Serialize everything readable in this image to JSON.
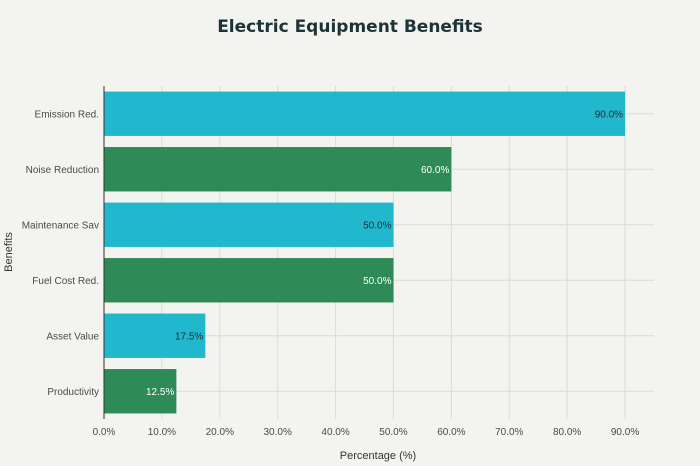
{
  "chart_data": {
    "type": "bar",
    "orientation": "horizontal",
    "title": "Electric Equipment Benefits",
    "xlabel": "Percentage (%)",
    "ylabel": "Benefits",
    "xlim": [
      0,
      95
    ],
    "xticks": [
      0,
      10,
      20,
      30,
      40,
      50,
      60,
      70,
      80,
      90
    ],
    "xtick_labels": [
      "0.0%",
      "10.0%",
      "20.0%",
      "30.0%",
      "40.0%",
      "50.0%",
      "60.0%",
      "70.0%",
      "80.0%",
      "90.0%"
    ],
    "grid": true,
    "categories": [
      "Emission Red.",
      "Noise Reduction",
      "Maintenance Sav",
      "Fuel Cost Red.",
      "Asset Value",
      "Productivity"
    ],
    "values": [
      90.0,
      60.0,
      50.0,
      50.0,
      17.5,
      12.5
    ],
    "data_labels": [
      "90.0%",
      "60.0%",
      "50.0%",
      "50.0%",
      "17.5%",
      "12.5%"
    ],
    "colors": [
      "#21b7cd",
      "#2e8b57",
      "#21b7cd",
      "#2e8b57",
      "#21b7cd",
      "#2e8b57"
    ],
    "label_colors": [
      "#1f2d33",
      "#ffffff",
      "#1f2d33",
      "#ffffff",
      "#1f2d33",
      "#ffffff"
    ]
  },
  "style": {
    "background": "#f3f3ef",
    "grid_color": "#dcdcd6",
    "axis_color": "#333333",
    "text_color": "#4a4a4a"
  }
}
